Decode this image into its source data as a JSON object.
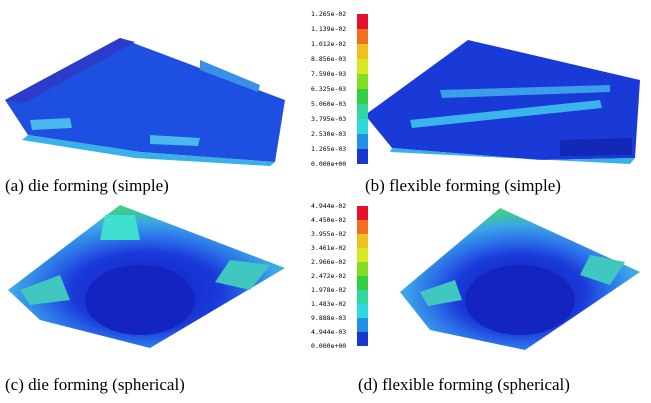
{
  "panels": [
    {
      "caption": "(a) die forming (simple)"
    },
    {
      "caption": "(b) flexible forming (simple)"
    },
    {
      "caption": "(c) die forming (spherical)"
    },
    {
      "caption": "(d) flexible forming (spherical)"
    }
  ],
  "colorbars": [
    {
      "labels": [
        "1.265e-02",
        "1.139e-02",
        "1.012e-02",
        "8.856e-03",
        "7.590e-03",
        "6.325e-03",
        "5.060e-03",
        "3.795e-03",
        "2.530e-03",
        "1.265e-03",
        "0.000e+00"
      ]
    },
    {
      "labels": [
        "4.944e-02",
        "4.450e-02",
        "3.955e-02",
        "3.461e-02",
        "2.966e-02",
        "2.472e-02",
        "1.978e-02",
        "1.483e-02",
        "9.888e-03",
        "4.944e-03",
        "0.000e+00"
      ]
    }
  ]
}
